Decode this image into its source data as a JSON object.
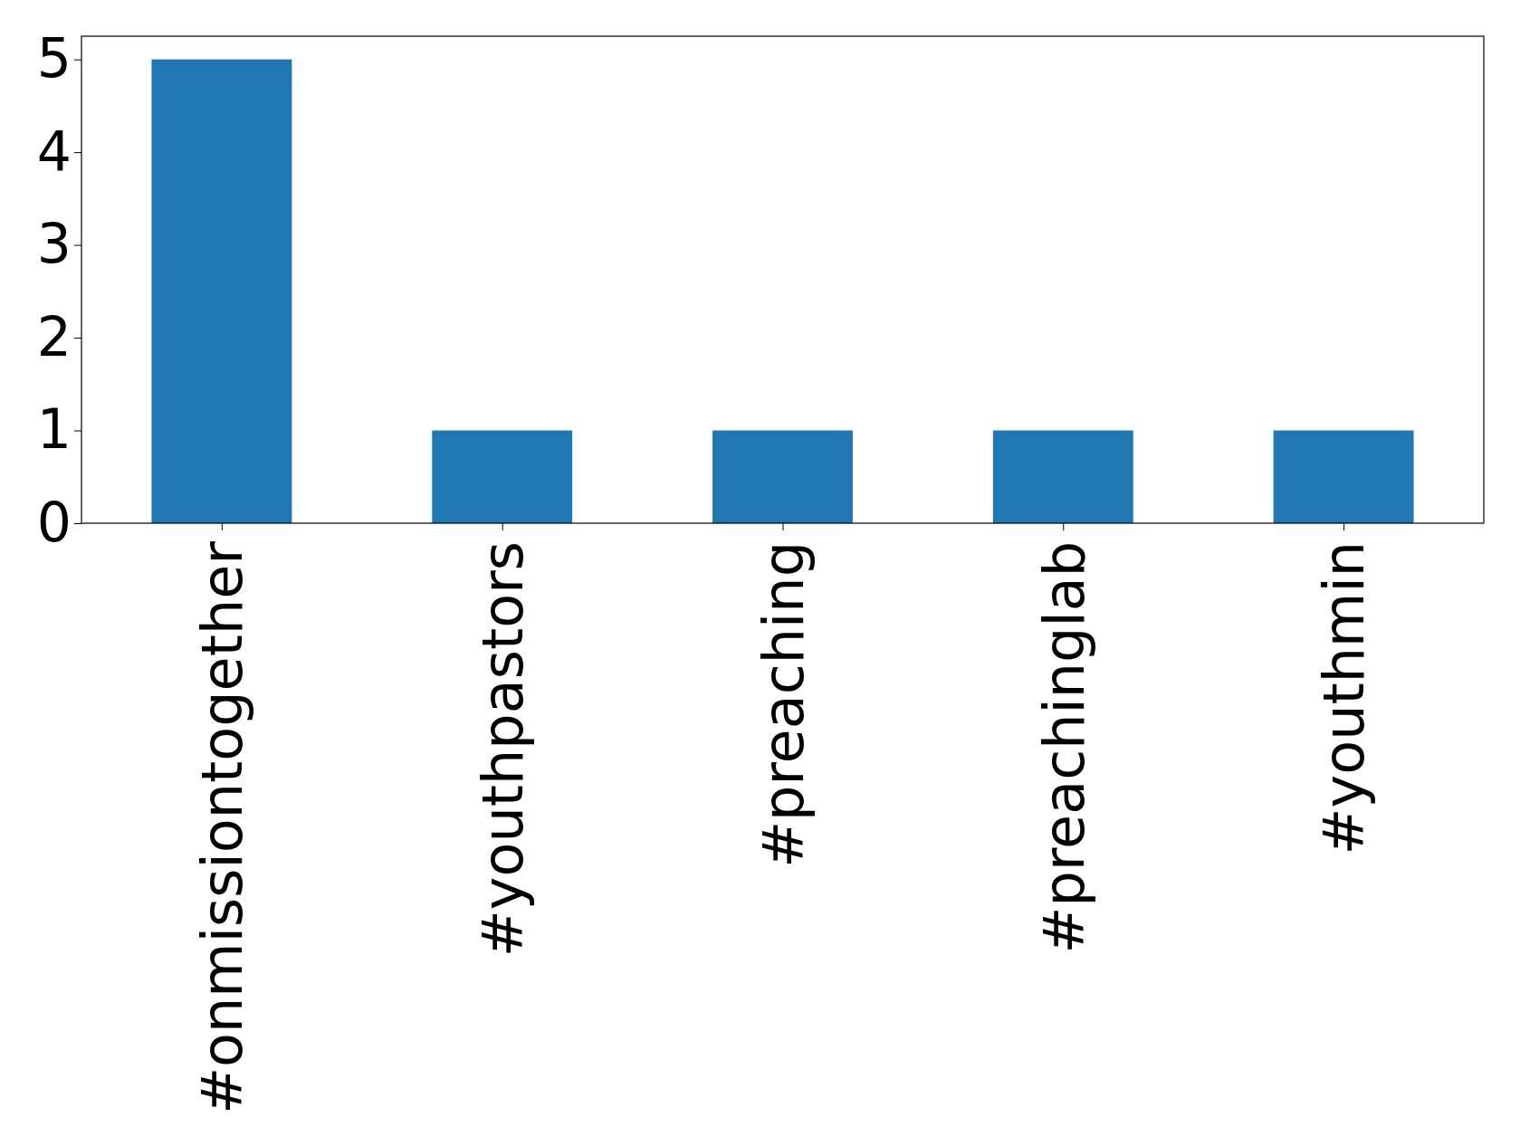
{
  "chart_data": {
    "type": "bar",
    "categories": [
      "#onmissiontogether",
      "#youthpastors",
      "#preaching",
      "#preachinglab",
      "#youthmin"
    ],
    "values": [
      5,
      1,
      1,
      1,
      1
    ],
    "color": "#1f77b4",
    "ylim": [
      0,
      5.25
    ],
    "yticks": [
      0,
      1,
      2,
      3,
      4,
      5
    ],
    "grid": false
  }
}
